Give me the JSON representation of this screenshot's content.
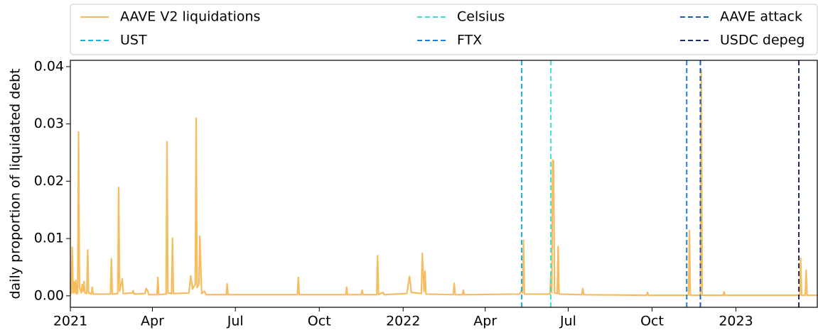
{
  "chart_data": {
    "type": "line",
    "ylabel": "daily proportion of liquidated debt",
    "x": [
      "2021-01-01",
      "2021-01-02",
      "2021-01-03",
      "2021-01-04",
      "2021-01-05",
      "2021-01-06",
      "2021-01-07",
      "2021-01-08",
      "2021-01-09",
      "2021-01-10",
      "2021-01-11",
      "2021-01-13",
      "2021-01-14",
      "2021-01-15",
      "2021-01-16",
      "2021-01-17",
      "2021-01-19",
      "2021-01-20",
      "2021-01-21",
      "2021-01-24",
      "2021-01-25",
      "2021-01-26",
      "2021-02-14",
      "2021-02-15",
      "2021-02-16",
      "2021-02-22",
      "2021-02-23",
      "2021-02-24",
      "2021-02-27",
      "2021-02-28",
      "2021-03-10",
      "2021-03-11",
      "2021-03-12",
      "2021-03-24",
      "2021-03-25",
      "2021-03-27",
      "2021-03-28",
      "2021-04-06",
      "2021-04-07",
      "2021-04-08",
      "2021-04-16",
      "2021-04-17",
      "2021-04-18",
      "2021-04-22",
      "2021-04-23",
      "2021-04-24",
      "2021-05-11",
      "2021-05-13",
      "2021-05-15",
      "2021-05-18",
      "2021-05-19",
      "2021-05-20",
      "2021-05-22",
      "2021-05-23",
      "2021-05-25",
      "2021-05-28",
      "2021-05-30",
      "2021-06-21",
      "2021-06-22",
      "2021-06-23",
      "2021-09-07",
      "2021-09-08",
      "2021-09-09",
      "2021-10-30",
      "2021-10-31",
      "2021-11-01",
      "2021-11-16",
      "2021-11-17",
      "2021-11-18",
      "2021-12-03",
      "2021-12-04",
      "2021-12-05",
      "2021-12-10",
      "2021-12-11",
      "2022-01-05",
      "2022-01-08",
      "2022-01-10",
      "2022-01-21",
      "2022-01-22",
      "2022-01-24",
      "2022-01-25",
      "2022-01-26",
      "2022-02-25",
      "2022-02-26",
      "2022-02-27",
      "2022-03-07",
      "2022-03-08",
      "2022-03-09",
      "2022-05-09",
      "2022-05-10",
      "2022-05-12",
      "2022-05-13",
      "2022-05-14",
      "2022-06-11",
      "2022-06-12",
      "2022-06-13",
      "2022-06-14",
      "2022-06-15",
      "2022-06-16",
      "2022-06-19",
      "2022-06-20",
      "2022-06-21",
      "2022-07-16",
      "2022-07-17",
      "2022-07-18",
      "2022-09-25",
      "2022-09-26",
      "2022-09-27",
      "2022-11-10",
      "2022-11-11",
      "2022-11-12",
      "2022-11-23",
      "2022-11-24",
      "2022-11-25",
      "2022-12-18",
      "2022-12-19",
      "2022-12-20",
      "2023-03-12",
      "2023-03-13",
      "2023-03-14",
      "2023-03-18",
      "2023-03-19",
      "2023-03-20",
      "2023-03-31"
    ],
    "series": [
      {
        "name": "AAVE V2 liquidations",
        "color": "#f6bd60",
        "values": [
          0.0003,
          0.0005,
          0.0085,
          0.0005,
          0.0025,
          0.0005,
          0.0027,
          0.0003,
          0.0005,
          0.0286,
          0.0015,
          0.0005,
          0.002,
          0.0008,
          0.0025,
          0.0005,
          0.0004,
          0.008,
          0.0005,
          0.0003,
          0.0015,
          0.0003,
          0.0003,
          0.0065,
          0.0003,
          0.0004,
          0.0189,
          0.0008,
          0.003,
          0.0004,
          0.0005,
          0.0009,
          0.0003,
          0.0004,
          0.0013,
          0.0008,
          0.0002,
          0.0002,
          0.0032,
          0.0002,
          0.0003,
          0.0269,
          0.0005,
          0.0004,
          0.0101,
          0.0004,
          0.0005,
          0.0035,
          0.0012,
          0.002,
          0.031,
          0.0015,
          0.002,
          0.0104,
          0.0004,
          0.0008,
          0.0002,
          0.0002,
          0.0021,
          0.0002,
          0.0002,
          0.0032,
          0.0002,
          0.0002,
          0.0015,
          0.0002,
          0.0002,
          0.001,
          0.0002,
          0.0002,
          0.007,
          0.0002,
          0.0006,
          0.0002,
          0.0004,
          0.0034,
          0.0006,
          0.0004,
          0.0074,
          0.0008,
          0.0043,
          0.0003,
          0.0002,
          0.0022,
          0.0002,
          0.0002,
          0.001,
          0.0002,
          0.0003,
          0.0008,
          0.0005,
          0.0097,
          0.0003,
          0.0003,
          0.004,
          0.0006,
          0.0237,
          0.0235,
          0.0005,
          0.0004,
          0.0086,
          0.0003,
          0.0002,
          0.0013,
          0.0002,
          0.0001,
          0.0006,
          0.0001,
          0.0001,
          0.0114,
          0.0001,
          0.0001,
          0.0394,
          0.0001,
          0.0001,
          0.0007,
          0.0001,
          0.0001,
          0.0066,
          0.0001,
          0.0001,
          0.0045,
          0.0001,
          0.0001
        ]
      }
    ],
    "events": [
      {
        "name": "UST",
        "color": "#17b4d8",
        "x": "2022-05-11"
      },
      {
        "name": "Celsius",
        "color": "#40e0d0",
        "x": "2022-06-12"
      },
      {
        "name": "FTX",
        "color": "#1e7fe0",
        "x": "2022-11-08"
      },
      {
        "name": "AAVE attack",
        "color": "#1a5bb8",
        "x": "2022-11-23"
      },
      {
        "name": "USDC depeg",
        "color": "#1b2a6b",
        "x": "2023-03-11"
      }
    ],
    "xlim": [
      "2021-01-01",
      "2023-04-01"
    ],
    "xticks": [
      {
        "value": "2021-01-01",
        "label": "2021"
      },
      {
        "value": "2021-04-01",
        "label": "Apr"
      },
      {
        "value": "2021-07-01",
        "label": "Jul"
      },
      {
        "value": "2021-10-01",
        "label": "Oct"
      },
      {
        "value": "2022-01-01",
        "label": "2022"
      },
      {
        "value": "2022-04-01",
        "label": "Apr"
      },
      {
        "value": "2022-07-01",
        "label": "Jul"
      },
      {
        "value": "2022-10-01",
        "label": "Oct"
      },
      {
        "value": "2023-01-01",
        "label": "2023"
      }
    ],
    "ylim": [
      -0.002,
      0.0411
    ],
    "yticks": [
      {
        "value": 0,
        "label": "0.00"
      },
      {
        "value": 0.01,
        "label": "0.01"
      },
      {
        "value": 0.02,
        "label": "0.02"
      },
      {
        "value": 0.03,
        "label": "0.03"
      },
      {
        "value": 0.04,
        "label": "0.04"
      }
    ],
    "legend": "top"
  }
}
